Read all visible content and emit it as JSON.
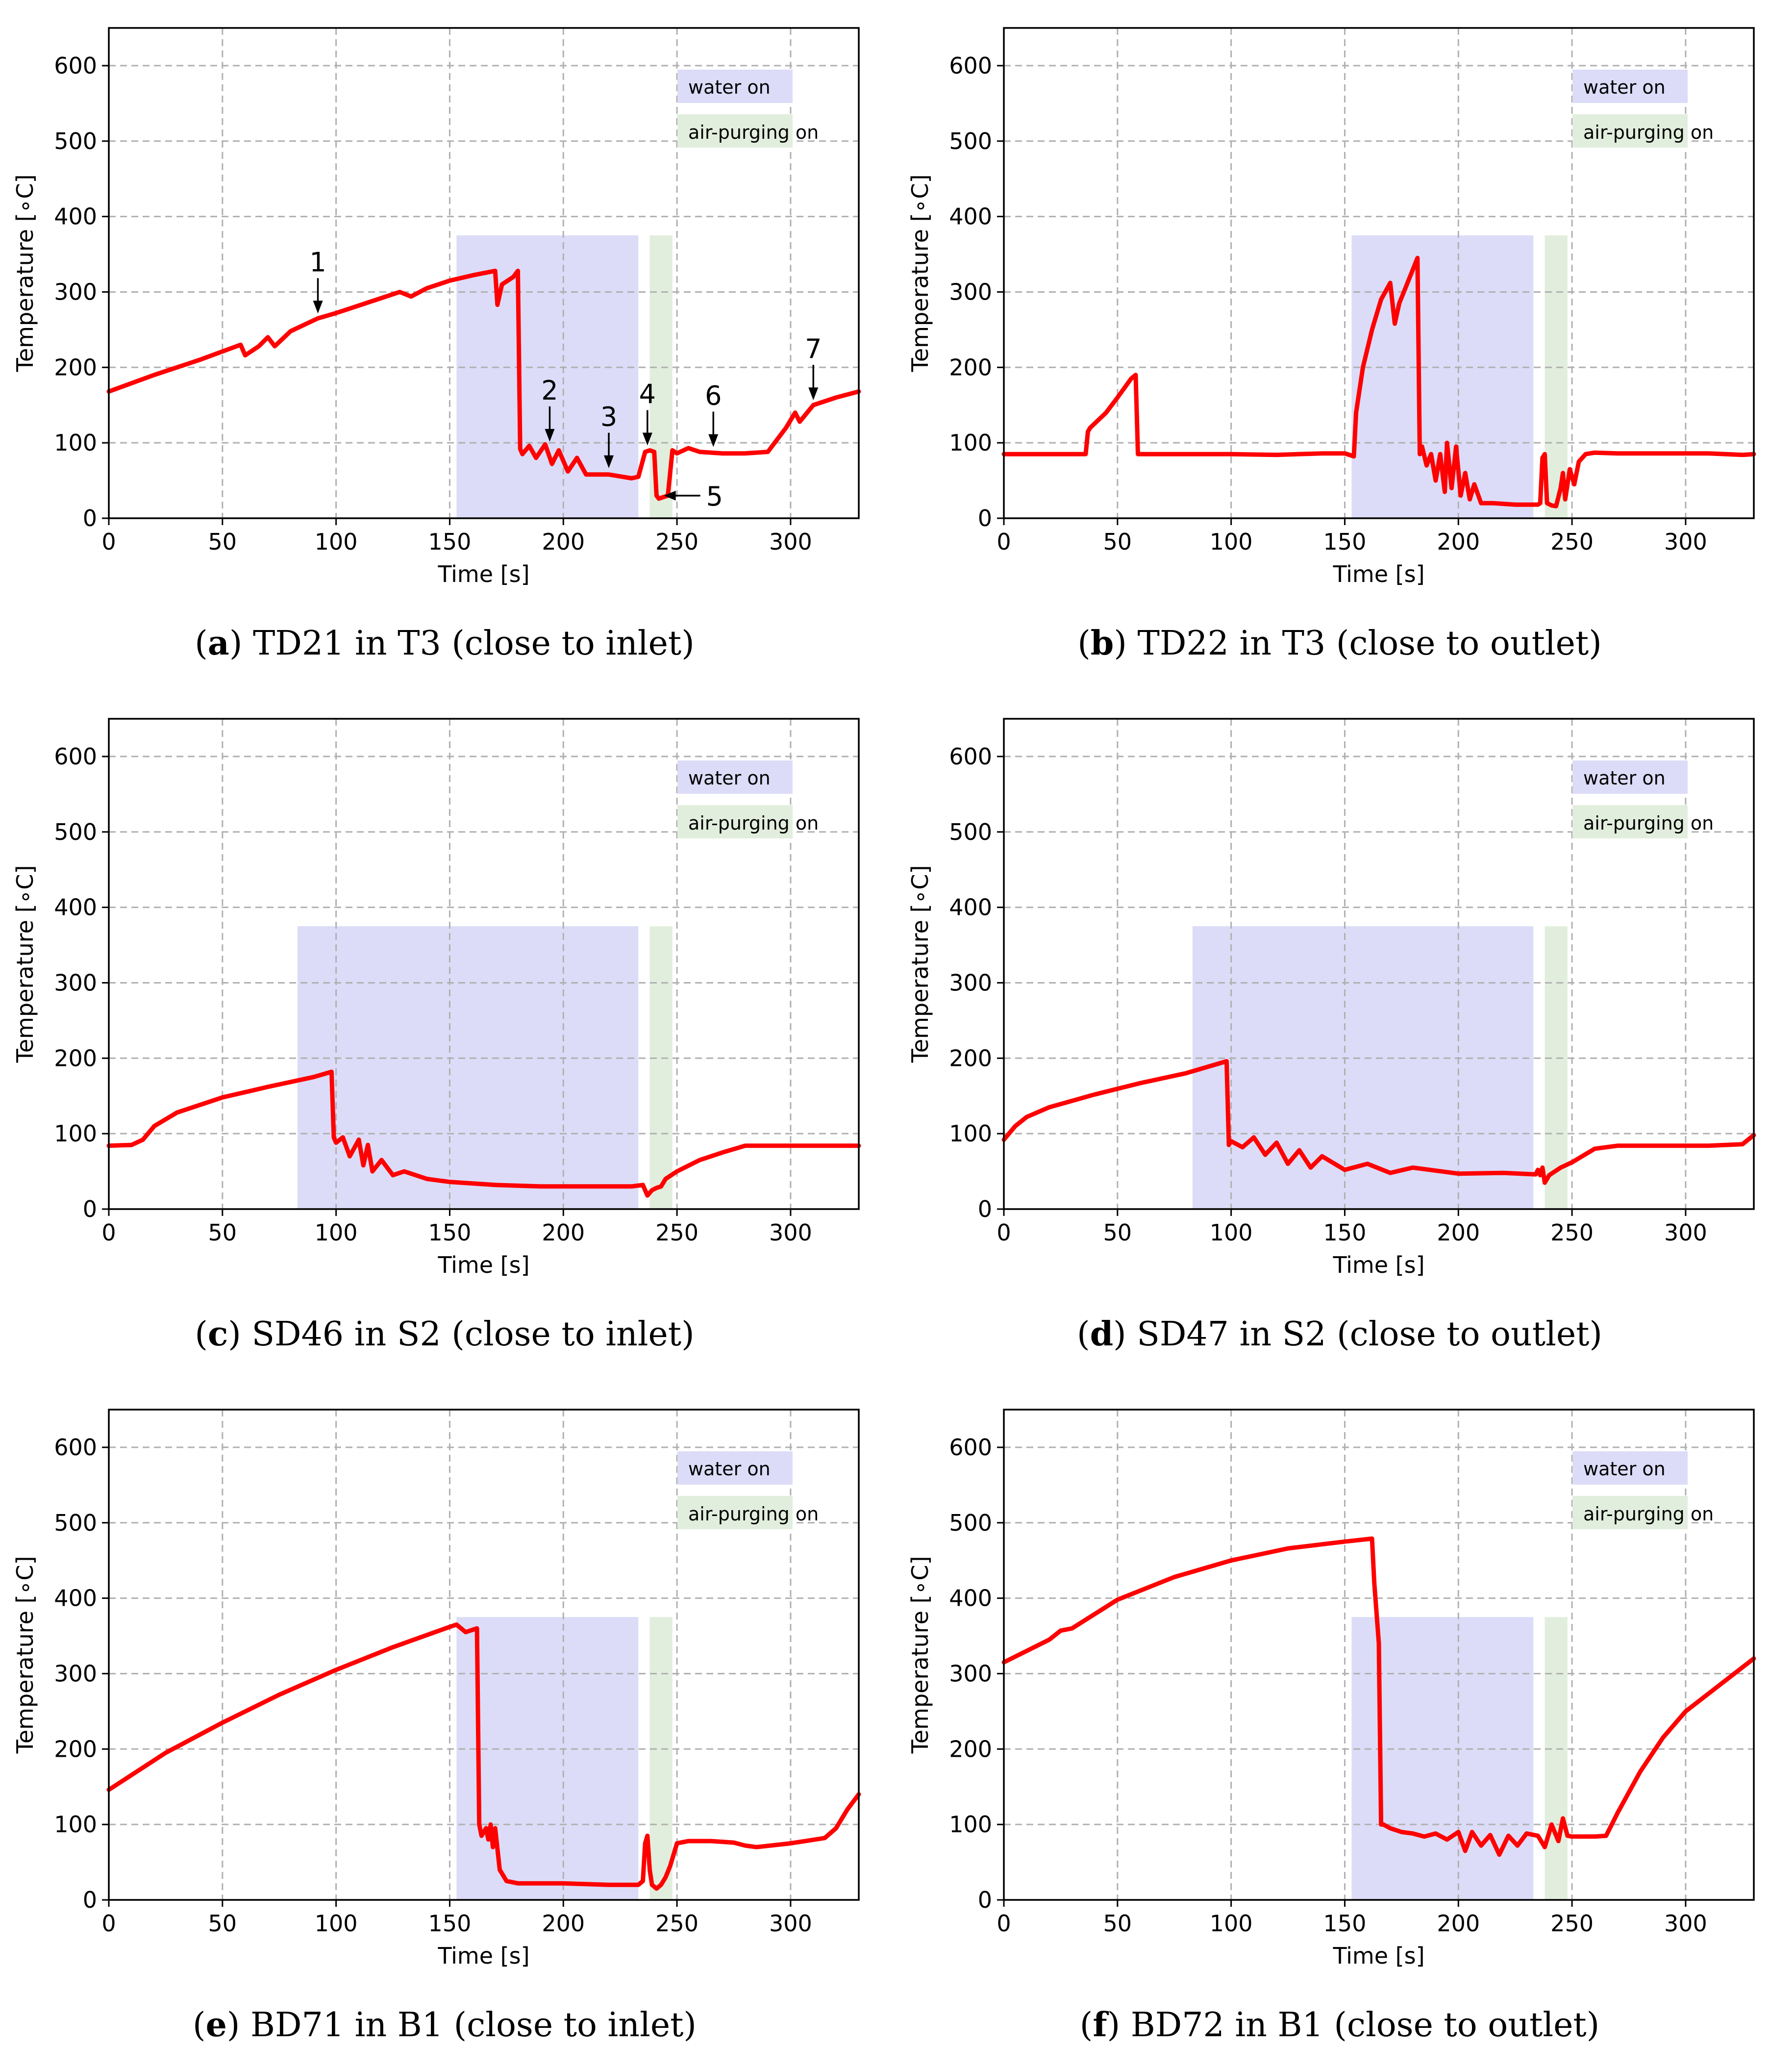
{
  "colors": {
    "line": "#ff0000",
    "water_band": "#dcdcf8",
    "air_band": "#e2eedd",
    "grid": "#b0b0b0"
  },
  "chart_data": [
    {
      "type": "line",
      "caption_letter": "a",
      "caption_text": " TD21 in T3 (close to inlet)",
      "xlabel": "Time [s]",
      "ylabel": "Temperature [∘C]",
      "xlim": [
        0,
        330
      ],
      "ylim": [
        0,
        650
      ],
      "xticks": [
        "0",
        "50",
        "100",
        "150",
        "200",
        "250",
        "300"
      ],
      "yticks": [
        "0",
        "100",
        "200",
        "300",
        "400",
        "500",
        "600"
      ],
      "legend": {
        "water": "water on",
        "air": "air-purging on"
      },
      "water_span": [
        153,
        233,
        0,
        375
      ],
      "air_span": [
        238,
        248,
        0,
        375
      ],
      "series": [
        {
          "name": "TD21",
          "x": [
            0,
            20,
            40,
            58,
            60,
            66,
            70,
            73,
            80,
            92,
            100,
            110,
            120,
            128,
            133,
            140,
            150,
            160,
            170,
            171,
            173,
            178,
            180,
            181,
            182,
            185,
            188,
            192,
            195,
            198,
            202,
            206,
            210,
            220,
            230,
            233,
            236,
            238,
            240,
            241,
            242,
            244,
            246,
            248,
            250,
            255,
            260,
            270,
            280,
            290,
            298,
            302,
            304,
            310,
            320,
            330
          ],
          "y": [
            168,
            190,
            210,
            230,
            216,
            228,
            240,
            228,
            248,
            265,
            272,
            282,
            292,
            300,
            294,
            305,
            315,
            322,
            328,
            283,
            310,
            320,
            328,
            92,
            85,
            96,
            80,
            98,
            72,
            90,
            62,
            80,
            58,
            58,
            53,
            55,
            88,
            90,
            88,
            30,
            26,
            28,
            30,
            90,
            86,
            93,
            88,
            86,
            86,
            88,
            120,
            140,
            128,
            150,
            160,
            168
          ]
        }
      ],
      "annotations": [
        {
          "label": "1",
          "x": 92,
          "y": 265
        },
        {
          "label": "2",
          "x": 194,
          "y": 95
        },
        {
          "label": "3",
          "x": 220,
          "y": 60
        },
        {
          "label": "4",
          "x": 237,
          "y": 90
        },
        {
          "label": "5",
          "x": 243,
          "y": 30
        },
        {
          "label": "6",
          "x": 266,
          "y": 88
        },
        {
          "label": "7",
          "x": 310,
          "y": 150
        }
      ]
    },
    {
      "type": "line",
      "caption_letter": "b",
      "caption_text": " TD22 in T3 (close to outlet)",
      "xlabel": "Time [s]",
      "ylabel": "Temperature [∘C]",
      "xlim": [
        0,
        330
      ],
      "ylim": [
        0,
        650
      ],
      "xticks": [
        "0",
        "50",
        "100",
        "150",
        "200",
        "250",
        "300"
      ],
      "yticks": [
        "0",
        "100",
        "200",
        "300",
        "400",
        "500",
        "600"
      ],
      "legend": {
        "water": "water on",
        "air": "air-purging on"
      },
      "water_span": [
        153,
        233,
        0,
        375
      ],
      "air_span": [
        238,
        248,
        0,
        375
      ],
      "series": [
        {
          "name": "TD22",
          "x": [
            0,
            20,
            36,
            37,
            38,
            45,
            50,
            56,
            58,
            59,
            80,
            100,
            120,
            140,
            150,
            154,
            155,
            158,
            162,
            166,
            170,
            172,
            174,
            178,
            182,
            183,
            184,
            186,
            188,
            190,
            192,
            194,
            195,
            197,
            199,
            201,
            203,
            205,
            207,
            210,
            215,
            225,
            235,
            236,
            237,
            238,
            239,
            241,
            243,
            245,
            246,
            247,
            249,
            251,
            253,
            256,
            260,
            270,
            290,
            310,
            325,
            330
          ],
          "y": [
            85,
            85,
            85,
            115,
            120,
            140,
            160,
            185,
            190,
            85,
            85,
            85,
            84,
            86,
            86,
            82,
            140,
            200,
            250,
            290,
            312,
            258,
            285,
            315,
            345,
            85,
            95,
            70,
            85,
            50,
            85,
            35,
            100,
            40,
            95,
            30,
            60,
            25,
            45,
            20,
            20,
            18,
            18,
            20,
            80,
            85,
            20,
            17,
            16,
            40,
            60,
            25,
            65,
            45,
            75,
            85,
            87,
            86,
            86,
            86,
            84,
            85
          ]
        }
      ],
      "annotations": []
    },
    {
      "type": "line",
      "caption_letter": "c",
      "caption_text": " SD46 in S2 (close to inlet)",
      "xlabel": "Time [s]",
      "ylabel": "Temperature [∘C]",
      "xlim": [
        0,
        330
      ],
      "ylim": [
        0,
        650
      ],
      "xticks": [
        "0",
        "50",
        "100",
        "150",
        "200",
        "250",
        "300"
      ],
      "yticks": [
        "0",
        "100",
        "200",
        "300",
        "400",
        "500",
        "600"
      ],
      "legend": {
        "water": "water on",
        "air": "air-purging on"
      },
      "water_span": [
        83,
        233,
        0,
        375
      ],
      "air_span": [
        238,
        248,
        0,
        375
      ],
      "series": [
        {
          "name": "SD46",
          "x": [
            0,
            10,
            15,
            20,
            30,
            50,
            70,
            90,
            98,
            99,
            100,
            103,
            106,
            110,
            112,
            114,
            116,
            120,
            125,
            130,
            140,
            150,
            170,
            190,
            210,
            230,
            235,
            237,
            239,
            241,
            243,
            245,
            250,
            260,
            270,
            280,
            300,
            330
          ],
          "y": [
            84,
            85,
            92,
            110,
            128,
            148,
            162,
            175,
            182,
            95,
            88,
            95,
            70,
            92,
            58,
            85,
            50,
            65,
            45,
            50,
            40,
            36,
            32,
            30,
            30,
            30,
            32,
            18,
            25,
            28,
            30,
            40,
            50,
            65,
            75,
            84,
            84,
            84
          ]
        }
      ],
      "annotations": []
    },
    {
      "type": "line",
      "caption_letter": "d",
      "caption_text": " SD47 in S2 (close to outlet)",
      "xlabel": "Time [s]",
      "ylabel": "Temperature [∘C]",
      "xlim": [
        0,
        330
      ],
      "ylim": [
        0,
        650
      ],
      "xticks": [
        "0",
        "50",
        "100",
        "150",
        "200",
        "250",
        "300"
      ],
      "yticks": [
        "0",
        "100",
        "200",
        "300",
        "400",
        "500",
        "600"
      ],
      "legend": {
        "water": "water on",
        "air": "air-purging on"
      },
      "water_span": [
        83,
        233,
        0,
        375
      ],
      "air_span": [
        238,
        248,
        0,
        375
      ],
      "series": [
        {
          "name": "SD47",
          "x": [
            0,
            5,
            10,
            20,
            40,
            60,
            80,
            98,
            99,
            100,
            105,
            110,
            115,
            120,
            125,
            130,
            135,
            140,
            150,
            160,
            170,
            180,
            200,
            220,
            234,
            235,
            236,
            237,
            238,
            240,
            245,
            250,
            260,
            270,
            290,
            310,
            325,
            330
          ],
          "y": [
            92,
            110,
            122,
            135,
            152,
            167,
            180,
            196,
            85,
            90,
            82,
            95,
            72,
            88,
            60,
            78,
            55,
            70,
            52,
            60,
            48,
            55,
            47,
            48,
            46,
            52,
            45,
            55,
            35,
            45,
            55,
            62,
            80,
            84,
            84,
            84,
            86,
            98
          ]
        }
      ],
      "annotations": []
    },
    {
      "type": "line",
      "caption_letter": "e",
      "caption_text": " BD71 in B1 (close to inlet)",
      "xlabel": "Time [s]",
      "ylabel": "Temperature [∘C]",
      "xlim": [
        0,
        330
      ],
      "ylim": [
        0,
        650
      ],
      "xticks": [
        "0",
        "50",
        "100",
        "150",
        "200",
        "250",
        "300"
      ],
      "yticks": [
        "0",
        "100",
        "200",
        "300",
        "400",
        "500",
        "600"
      ],
      "legend": {
        "water": "water on",
        "air": "air-purging on"
      },
      "water_span": [
        153,
        233,
        0,
        375
      ],
      "air_span": [
        238,
        248,
        0,
        375
      ],
      "series": [
        {
          "name": "BD71",
          "x": [
            0,
            25,
            50,
            75,
            100,
            125,
            150,
            153,
            157,
            162,
            163,
            164,
            166,
            167,
            168,
            169,
            170,
            172,
            175,
            180,
            200,
            220,
            233,
            235,
            236,
            237,
            238,
            239,
            241,
            243,
            245,
            247,
            250,
            255,
            265,
            275,
            280,
            285,
            300,
            315,
            320,
            325,
            330
          ],
          "y": [
            146,
            195,
            235,
            272,
            305,
            335,
            362,
            365,
            355,
            360,
            100,
            85,
            95,
            80,
            100,
            70,
            95,
            40,
            25,
            22,
            22,
            20,
            20,
            25,
            75,
            85,
            40,
            20,
            15,
            20,
            30,
            45,
            75,
            78,
            78,
            76,
            72,
            70,
            75,
            82,
            95,
            120,
            140
          ]
        }
      ],
      "annotations": []
    },
    {
      "type": "line",
      "caption_letter": "f",
      "caption_text": " BD72 in B1 (close to outlet)",
      "xlabel": "Time [s]",
      "ylabel": "Temperature [∘C]",
      "xlim": [
        0,
        330
      ],
      "ylim": [
        0,
        650
      ],
      "xticks": [
        "0",
        "50",
        "100",
        "150",
        "200",
        "250",
        "300"
      ],
      "yticks": [
        "0",
        "100",
        "200",
        "300",
        "400",
        "500",
        "600"
      ],
      "legend": {
        "water": "water on",
        "air": "air-purging on"
      },
      "water_span": [
        153,
        233,
        0,
        375
      ],
      "air_span": [
        238,
        248,
        0,
        375
      ],
      "series": [
        {
          "name": "BD72",
          "x": [
            0,
            20,
            25,
            30,
            50,
            75,
            100,
            125,
            150,
            162,
            163,
            165,
            166,
            167,
            170,
            175,
            180,
            185,
            190,
            195,
            200,
            203,
            206,
            210,
            214,
            218,
            222,
            226,
            230,
            235,
            238,
            241,
            244,
            246,
            248,
            250,
            260,
            265,
            270,
            280,
            290,
            300,
            315,
            330
          ],
          "y": [
            315,
            345,
            357,
            360,
            398,
            428,
            450,
            466,
            475,
            479,
            420,
            340,
            100,
            100,
            95,
            90,
            88,
            84,
            88,
            80,
            90,
            65,
            90,
            72,
            86,
            60,
            85,
            72,
            88,
            85,
            70,
            100,
            78,
            108,
            85,
            84,
            84,
            85,
            115,
            170,
            215,
            250,
            285,
            320
          ]
        }
      ],
      "annotations": []
    }
  ]
}
